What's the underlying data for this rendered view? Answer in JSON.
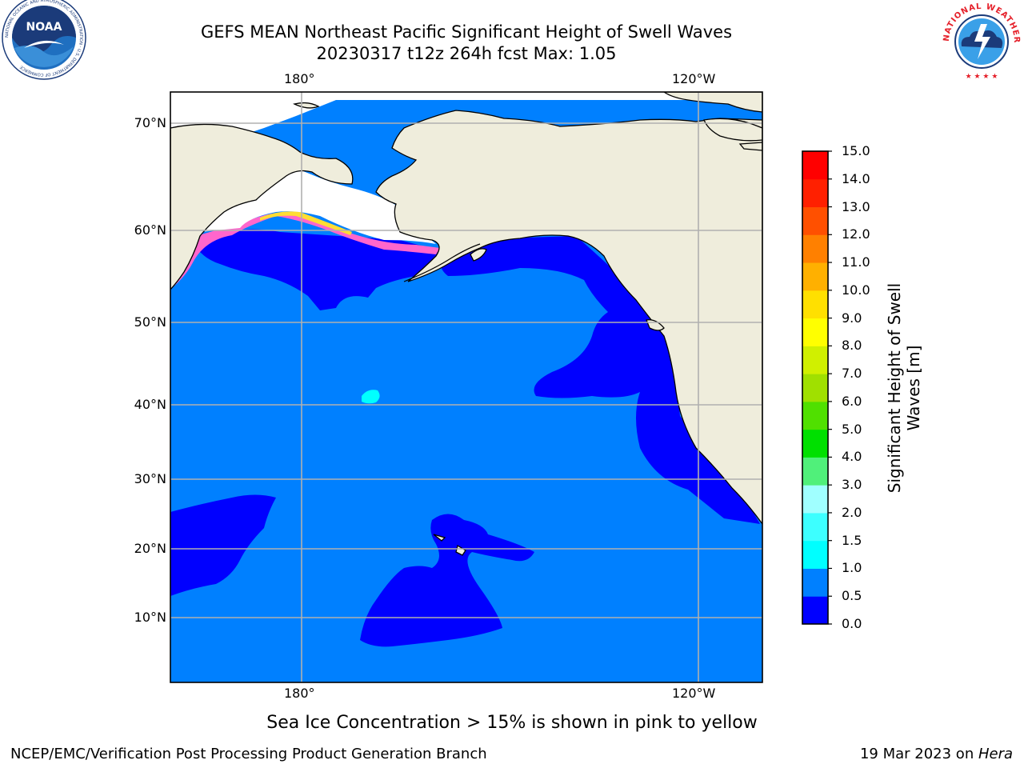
{
  "title": {
    "line1": "GEFS MEAN Northeast Pacific Significant Height of Swell Waves",
    "line2": "20230317 t12z 264h fcst   Max: 1.05"
  },
  "map": {
    "lon_labels": [
      "180°",
      "120°W"
    ],
    "lat_labels": [
      "70°N",
      "60°N",
      "50°N",
      "40°N",
      "30°N",
      "20°N",
      "10°N"
    ],
    "grid": true,
    "colors": {
      "land": "#efeddc",
      "ocean_0_0_5": "#0000ff",
      "ocean_0_5_1_0": "#0080ff",
      "ice_white": "#ffffff",
      "coast": "#000000",
      "grid": "#b0b0b0"
    }
  },
  "colorbar": {
    "label": "Significant Height of Swell Waves [m]",
    "ticks": [
      "15.0",
      "14.0",
      "13.0",
      "12.0",
      "11.0",
      "10.0",
      "9.0",
      "8.0",
      "7.0",
      "6.0",
      "5.0",
      "4.0",
      "3.0",
      "2.0",
      "1.5",
      "1.0",
      "0.5",
      "0.0"
    ],
    "colors": [
      "#0000ff",
      "#0080ff",
      "#00ffff",
      "#3dffff",
      "#a0ffff",
      "#50f07a",
      "#00e000",
      "#50e000",
      "#a0e000",
      "#d0f000",
      "#ffff00",
      "#ffe000",
      "#ffb000",
      "#ff8000",
      "#ff5000",
      "#ff2000",
      "#ff0000"
    ]
  },
  "note": "Sea Ice Concentration > 15% is shown in pink to yellow",
  "footer": {
    "left": "NCEP/EMC/Verification Post Processing Product Generation Branch",
    "date": "19 Mar 2023 on ",
    "machine": "Hera"
  },
  "logos": {
    "noaa": "NOAA",
    "noaa_ring": "NATIONAL OCEANIC AND ATMOSPHERIC ADMINISTRATION · U.S. DEPARTMENT OF COMMERCE",
    "nws_ring": "NATIONAL WEATHER SERVICE"
  }
}
